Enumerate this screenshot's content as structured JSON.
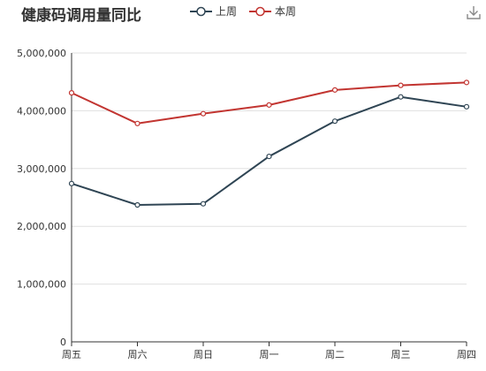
{
  "title": "健康码调用量同比",
  "icons": {
    "download": "download-icon"
  },
  "chart_data": {
    "type": "line",
    "title": "健康码调用量同比",
    "categories": [
      "周五",
      "周六",
      "周日",
      "周一",
      "周二",
      "周三",
      "周四"
    ],
    "ylim": [
      0,
      5000000
    ],
    "yticks": [
      0,
      1000000,
      2000000,
      3000000,
      4000000,
      5000000
    ],
    "ytick_labels": [
      "0",
      "1,000,000",
      "2,000,000",
      "3,000,000",
      "4,000,000",
      "5,000,000"
    ],
    "grid": true,
    "legend_position": "top",
    "series": [
      {
        "name": "上周",
        "color": "#2f4554",
        "values": [
          2740000,
          2370000,
          2390000,
          3210000,
          3820000,
          4240000,
          4070000
        ]
      },
      {
        "name": "本周",
        "color": "#c23531",
        "values": [
          4310000,
          3780000,
          3950000,
          4100000,
          4360000,
          4440000,
          4490000
        ]
      }
    ]
  }
}
